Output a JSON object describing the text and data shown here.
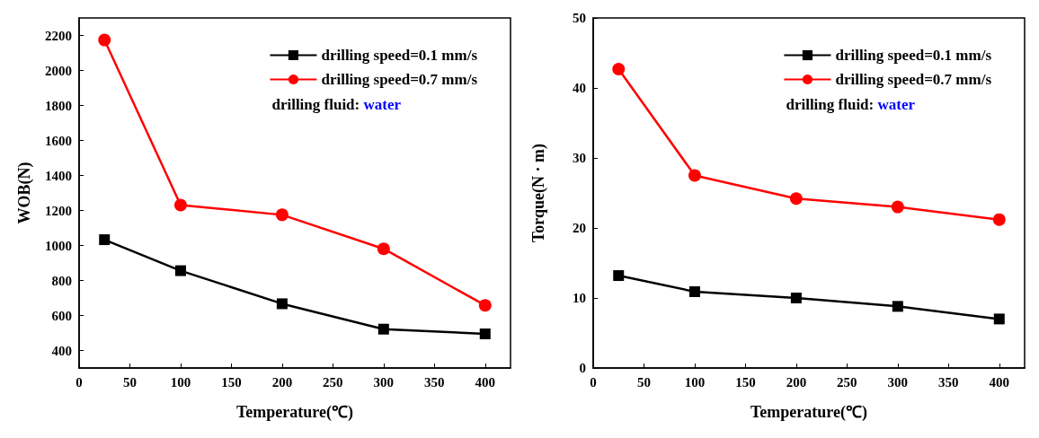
{
  "chart_data": [
    {
      "type": "line",
      "xlabel": "Temperature(℃)",
      "ylabel": "WOB(N)",
      "x": [
        25,
        100,
        200,
        300,
        400
      ],
      "xlim": [
        0,
        425
      ],
      "xticks": [
        0,
        50,
        100,
        150,
        200,
        250,
        300,
        350,
        400
      ],
      "ylim": [
        300,
        2300
      ],
      "yticks": [
        400,
        600,
        800,
        1000,
        1200,
        1400,
        1600,
        1800,
        2000,
        2200
      ],
      "legend": "top right",
      "grid": false,
      "annotations": [
        "drilling fluid: water"
      ],
      "series": [
        {
          "name": "drilling speed=0.1 mm/s",
          "color": "#000000",
          "marker": "square",
          "values": [
            1033,
            856,
            667,
            522,
            495
          ]
        },
        {
          "name": "drilling speed=0.7 mm/s",
          "color": "#ff0000",
          "marker": "circle",
          "values": [
            2174,
            1231,
            1175,
            981,
            658
          ]
        }
      ]
    },
    {
      "type": "line",
      "xlabel": "Temperature(℃)",
      "ylabel": "Torque(N · m)",
      "x": [
        25,
        100,
        200,
        300,
        400
      ],
      "xlim": [
        0,
        425
      ],
      "xticks": [
        0,
        50,
        100,
        150,
        200,
        250,
        300,
        350,
        400
      ],
      "ylim": [
        0,
        50
      ],
      "yticks": [
        0,
        10,
        20,
        30,
        40,
        50
      ],
      "legend": "top right",
      "grid": false,
      "annotations": [
        "drilling fluid: water"
      ],
      "series": [
        {
          "name": "drilling speed=0.1 mm/s",
          "color": "#000000",
          "marker": "square",
          "values": [
            13.2,
            10.9,
            10.0,
            8.8,
            7.0
          ]
        },
        {
          "name": "drilling speed=0.7 mm/s",
          "color": "#ff0000",
          "marker": "circle",
          "values": [
            42.7,
            27.5,
            24.2,
            23.0,
            21.2
          ]
        }
      ]
    }
  ]
}
